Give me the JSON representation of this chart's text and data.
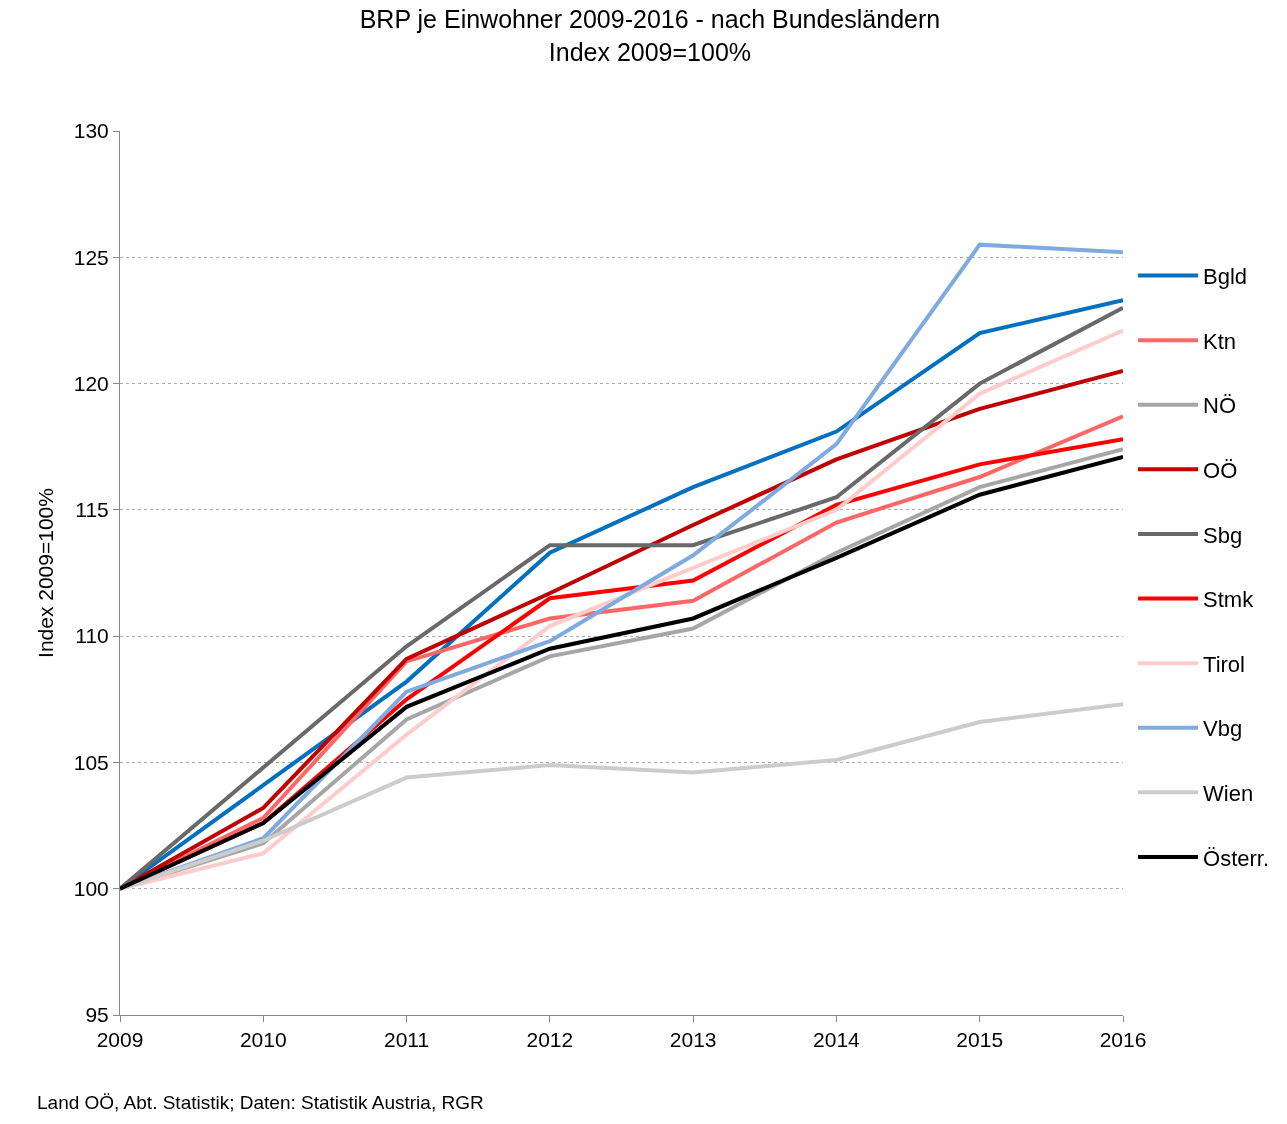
{
  "chart_data": {
    "type": "line",
    "title": "BRP je Einwohner 2009-2016 - nach Bundesländern",
    "subtitle": "Index 2009=100%",
    "ylabel": "Index 2009=100%",
    "categories": [
      "2009",
      "2010",
      "2011",
      "2012",
      "2013",
      "2014",
      "2015",
      "2016"
    ],
    "ylim": [
      95,
      130
    ],
    "yticks": [
      95,
      100,
      105,
      110,
      115,
      120,
      125,
      130
    ],
    "grid": "y",
    "legend": "right",
    "marker": "none",
    "line_style": "solid",
    "series": [
      {
        "name": "Bgld",
        "color": "#0070c0",
        "values": [
          100,
          104.1,
          108.2,
          113.3,
          115.9,
          118.1,
          122.0,
          123.3
        ]
      },
      {
        "name": "Ktn",
        "color": "#ff6666",
        "values": [
          100,
          102.8,
          109.0,
          110.7,
          111.4,
          114.5,
          116.3,
          118.7
        ]
      },
      {
        "name": "NÖ",
        "color": "#a6a6a6",
        "values": [
          100,
          101.8,
          106.7,
          109.2,
          110.3,
          113.3,
          115.9,
          117.4
        ]
      },
      {
        "name": "OÖ",
        "color": "#c00000",
        "values": [
          100,
          103.2,
          109.1,
          111.7,
          114.4,
          117.0,
          119.0,
          120.5
        ]
      },
      {
        "name": "Sbg",
        "color": "#696969",
        "values": [
          100,
          104.8,
          109.6,
          113.6,
          113.6,
          115.5,
          120.0,
          123.0
        ]
      },
      {
        "name": "Stmk",
        "color": "#ff0000",
        "values": [
          100,
          102.6,
          107.5,
          111.5,
          112.2,
          115.2,
          116.8,
          117.8
        ]
      },
      {
        "name": "Tirol",
        "color": "#ffcccc",
        "values": [
          100,
          101.4,
          106.1,
          110.4,
          112.7,
          115.0,
          119.6,
          122.1
        ]
      },
      {
        "name": "Vbg",
        "color": "#7faadf",
        "values": [
          100,
          102.0,
          107.8,
          109.8,
          113.2,
          117.6,
          125.5,
          125.2
        ]
      },
      {
        "name": "Wien",
        "color": "#cccccc",
        "values": [
          100,
          101.9,
          104.4,
          104.9,
          104.6,
          105.1,
          106.6,
          107.3
        ]
      },
      {
        "name": "Österr.",
        "color": "#000000",
        "values": [
          100,
          102.6,
          107.2,
          109.5,
          110.7,
          113.1,
          115.6,
          117.1
        ]
      }
    ],
    "annotations": [
      "Land OÖ, Abt. Statistik; Daten: Statistik Austria, RGR"
    ]
  }
}
